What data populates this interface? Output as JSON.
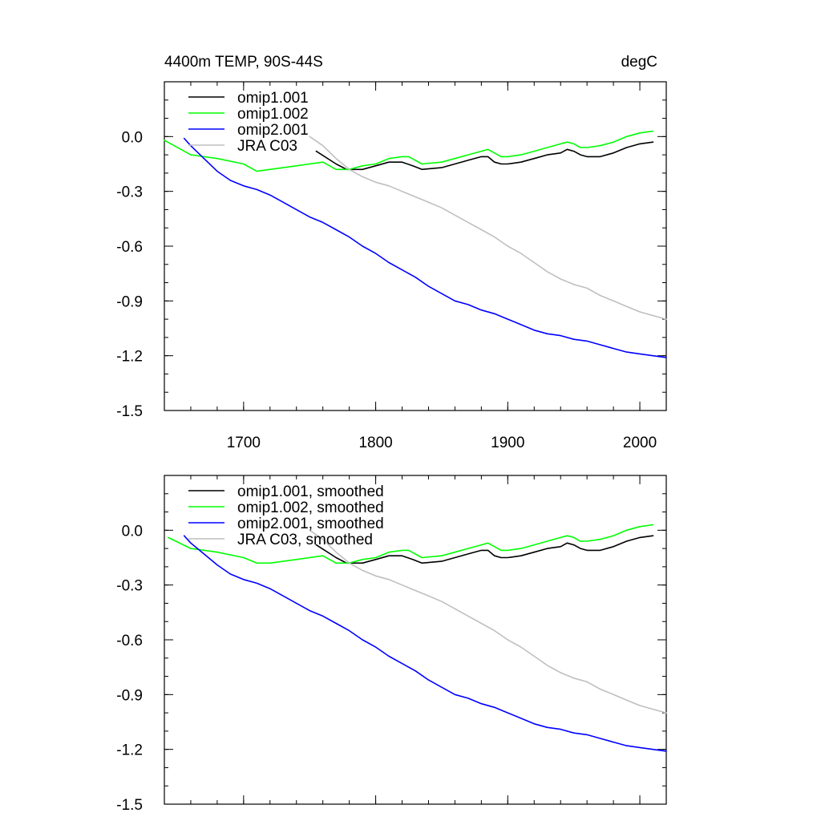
{
  "chart_data": [
    {
      "type": "line",
      "title_left": "4400m TEMP, 90S-44S",
      "title_right": "degC",
      "xlim": [
        1640,
        2020
      ],
      "ylim": [
        -1.5,
        0.3
      ],
      "yticks": [
        {
          "value": 0.0,
          "label": "0.0"
        },
        {
          "value": -0.3,
          "label": "-0.3"
        },
        {
          "value": -0.6,
          "label": "-0.6"
        },
        {
          "value": -0.9,
          "label": "-0.9"
        },
        {
          "value": -1.2,
          "label": "-1.2"
        },
        {
          "value": -1.5,
          "label": "-1.5"
        }
      ],
      "xticks": [
        {
          "value": 1700,
          "label": "1700"
        },
        {
          "value": 1800,
          "label": "1800"
        },
        {
          "value": 1900,
          "label": "1900"
        },
        {
          "value": 2000,
          "label": "2000"
        }
      ],
      "series": [
        {
          "name": "omip1.001",
          "color": "#000000",
          "x": [
            1755,
            1770,
            1778,
            1790,
            1800,
            1810,
            1820,
            1828,
            1835,
            1850,
            1860,
            1870,
            1880,
            1885,
            1890,
            1895,
            1900,
            1910,
            1920,
            1930,
            1940,
            1945,
            1950,
            1955,
            1960,
            1970,
            1980,
            1990,
            2000,
            2010
          ],
          "y": [
            -0.08,
            -0.15,
            -0.18,
            -0.18,
            -0.16,
            -0.14,
            -0.14,
            -0.16,
            -0.18,
            -0.17,
            -0.15,
            -0.13,
            -0.11,
            -0.11,
            -0.14,
            -0.15,
            -0.15,
            -0.14,
            -0.12,
            -0.1,
            -0.09,
            -0.07,
            -0.08,
            -0.1,
            -0.11,
            -0.11,
            -0.09,
            -0.06,
            -0.04,
            -0.03
          ]
        },
        {
          "name": "omip1.002",
          "color": "#00ff00",
          "x": [
            1640,
            1660,
            1680,
            1700,
            1710,
            1720,
            1740,
            1760,
            1770,
            1780,
            1790,
            1800,
            1810,
            1820,
            1825,
            1835,
            1850,
            1860,
            1870,
            1880,
            1885,
            1890,
            1895,
            1900,
            1910,
            1920,
            1930,
            1940,
            1945,
            1950,
            1955,
            1960,
            1970,
            1980,
            1990,
            2000,
            2010
          ],
          "y": [
            -0.02,
            -0.1,
            -0.12,
            -0.15,
            -0.19,
            -0.18,
            -0.16,
            -0.14,
            -0.18,
            -0.18,
            -0.16,
            -0.15,
            -0.12,
            -0.11,
            -0.11,
            -0.15,
            -0.14,
            -0.12,
            -0.1,
            -0.08,
            -0.07,
            -0.09,
            -0.11,
            -0.11,
            -0.1,
            -0.08,
            -0.06,
            -0.04,
            -0.03,
            -0.04,
            -0.06,
            -0.06,
            -0.05,
            -0.03,
            0.0,
            0.02,
            0.03
          ]
        },
        {
          "name": "omip2.001",
          "color": "#0000ff",
          "x": [
            1655,
            1660,
            1670,
            1680,
            1690,
            1700,
            1710,
            1720,
            1730,
            1740,
            1750,
            1760,
            1770,
            1780,
            1790,
            1800,
            1810,
            1820,
            1830,
            1840,
            1850,
            1860,
            1870,
            1880,
            1890,
            1900,
            1910,
            1920,
            1930,
            1940,
            1950,
            1960,
            1970,
            1980,
            1990,
            2000,
            2010,
            2020
          ],
          "y": [
            -0.01,
            -0.05,
            -0.12,
            -0.19,
            -0.24,
            -0.27,
            -0.29,
            -0.32,
            -0.36,
            -0.4,
            -0.44,
            -0.47,
            -0.51,
            -0.55,
            -0.6,
            -0.64,
            -0.69,
            -0.73,
            -0.77,
            -0.82,
            -0.86,
            -0.9,
            -0.92,
            -0.95,
            -0.97,
            -1.0,
            -1.03,
            -1.06,
            -1.08,
            -1.09,
            -1.11,
            -1.12,
            -1.14,
            -1.16,
            -1.18,
            -1.19,
            -1.2,
            -1.21
          ]
        },
        {
          "name": "JRA C03",
          "color": "#bfbfbf",
          "x": [
            1750,
            1760,
            1770,
            1780,
            1790,
            1800,
            1810,
            1820,
            1830,
            1840,
            1850,
            1860,
            1870,
            1880,
            1890,
            1900,
            1910,
            1920,
            1930,
            1940,
            1950,
            1960,
            1970,
            1980,
            1990,
            2000,
            2010,
            2020
          ],
          "y": [
            0.0,
            -0.05,
            -0.12,
            -0.18,
            -0.22,
            -0.25,
            -0.27,
            -0.3,
            -0.33,
            -0.36,
            -0.39,
            -0.43,
            -0.47,
            -0.51,
            -0.55,
            -0.6,
            -0.64,
            -0.69,
            -0.74,
            -0.78,
            -0.81,
            -0.83,
            -0.87,
            -0.9,
            -0.93,
            -0.96,
            -0.98,
            -1.0
          ]
        }
      ]
    },
    {
      "type": "line",
      "xlim": [
        1640,
        2020
      ],
      "ylim": [
        -1.5,
        0.3
      ],
      "yticks": [
        {
          "value": 0.0,
          "label": "0.0"
        },
        {
          "value": -0.3,
          "label": "-0.3"
        },
        {
          "value": -0.6,
          "label": "-0.6"
        },
        {
          "value": -0.9,
          "label": "-0.9"
        },
        {
          "value": -1.2,
          "label": "-1.2"
        },
        {
          "value": -1.5,
          "label": "-1.5"
        }
      ],
      "xticks": [
        {
          "value": 1700,
          "label": ""
        },
        {
          "value": 1800,
          "label": ""
        },
        {
          "value": 1900,
          "label": ""
        },
        {
          "value": 2000,
          "label": ""
        }
      ],
      "series": [
        {
          "name": "omip1.001, smoothed",
          "color": "#000000",
          "x": [
            1755,
            1770,
            1778,
            1790,
            1800,
            1810,
            1820,
            1828,
            1835,
            1850,
            1860,
            1870,
            1880,
            1885,
            1890,
            1895,
            1900,
            1910,
            1920,
            1930,
            1940,
            1945,
            1950,
            1955,
            1960,
            1970,
            1980,
            1990,
            2000,
            2010
          ],
          "y": [
            -0.08,
            -0.15,
            -0.18,
            -0.18,
            -0.16,
            -0.14,
            -0.14,
            -0.16,
            -0.18,
            -0.17,
            -0.15,
            -0.13,
            -0.11,
            -0.11,
            -0.14,
            -0.15,
            -0.15,
            -0.14,
            -0.12,
            -0.1,
            -0.09,
            -0.07,
            -0.08,
            -0.1,
            -0.11,
            -0.11,
            -0.09,
            -0.06,
            -0.04,
            -0.03
          ]
        },
        {
          "name": "omip1.002, smoothed",
          "color": "#00ff00",
          "x": [
            1643,
            1660,
            1680,
            1700,
            1710,
            1720,
            1740,
            1760,
            1770,
            1780,
            1790,
            1800,
            1810,
            1820,
            1825,
            1835,
            1850,
            1860,
            1870,
            1880,
            1885,
            1890,
            1895,
            1900,
            1910,
            1920,
            1930,
            1940,
            1945,
            1950,
            1955,
            1960,
            1970,
            1980,
            1990,
            2000,
            2010
          ],
          "y": [
            -0.04,
            -0.1,
            -0.12,
            -0.15,
            -0.18,
            -0.18,
            -0.16,
            -0.14,
            -0.18,
            -0.18,
            -0.16,
            -0.15,
            -0.12,
            -0.11,
            -0.11,
            -0.15,
            -0.14,
            -0.12,
            -0.1,
            -0.08,
            -0.07,
            -0.09,
            -0.11,
            -0.11,
            -0.1,
            -0.08,
            -0.06,
            -0.04,
            -0.03,
            -0.04,
            -0.06,
            -0.06,
            -0.05,
            -0.03,
            0.0,
            0.02,
            0.03
          ]
        },
        {
          "name": "omip2.001, smoothed",
          "color": "#0000ff",
          "x": [
            1655,
            1660,
            1670,
            1680,
            1690,
            1700,
            1710,
            1720,
            1730,
            1740,
            1750,
            1760,
            1770,
            1780,
            1790,
            1800,
            1810,
            1820,
            1830,
            1840,
            1850,
            1860,
            1870,
            1880,
            1890,
            1900,
            1910,
            1920,
            1930,
            1940,
            1950,
            1960,
            1970,
            1980,
            1990,
            2000,
            2010,
            2020
          ],
          "y": [
            -0.03,
            -0.07,
            -0.13,
            -0.19,
            -0.24,
            -0.27,
            -0.29,
            -0.32,
            -0.36,
            -0.4,
            -0.44,
            -0.47,
            -0.51,
            -0.55,
            -0.6,
            -0.64,
            -0.69,
            -0.73,
            -0.77,
            -0.82,
            -0.86,
            -0.9,
            -0.92,
            -0.95,
            -0.97,
            -1.0,
            -1.03,
            -1.06,
            -1.08,
            -1.09,
            -1.11,
            -1.12,
            -1.14,
            -1.16,
            -1.18,
            -1.19,
            -1.2,
            -1.21
          ]
        },
        {
          "name": "JRA C03, smoothed",
          "color": "#bfbfbf",
          "x": [
            1750,
            1760,
            1770,
            1780,
            1790,
            1800,
            1810,
            1820,
            1830,
            1840,
            1850,
            1860,
            1870,
            1880,
            1890,
            1900,
            1910,
            1920,
            1930,
            1940,
            1950,
            1960,
            1970,
            1980,
            1990,
            2000,
            2010,
            2020
          ],
          "y": [
            0.0,
            -0.05,
            -0.12,
            -0.18,
            -0.22,
            -0.25,
            -0.27,
            -0.3,
            -0.33,
            -0.36,
            -0.39,
            -0.43,
            -0.47,
            -0.51,
            -0.55,
            -0.6,
            -0.64,
            -0.69,
            -0.74,
            -0.78,
            -0.81,
            -0.83,
            -0.87,
            -0.9,
            -0.93,
            -0.96,
            -0.98,
            -1.0
          ]
        }
      ]
    }
  ]
}
